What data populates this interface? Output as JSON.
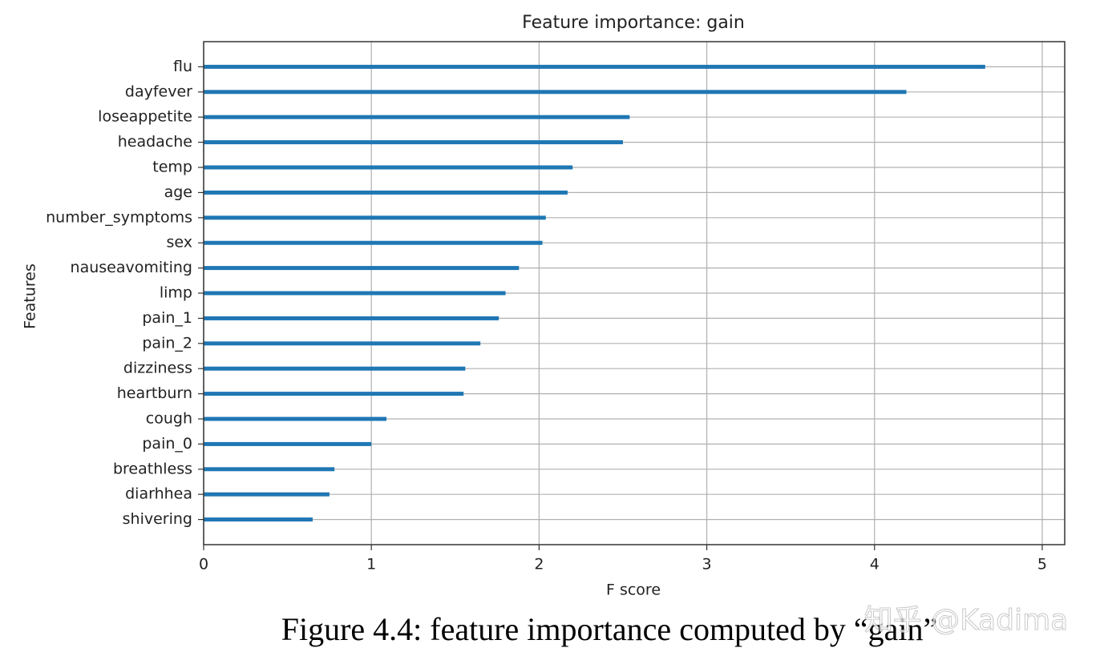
{
  "chart_data": {
    "type": "barh",
    "title": "Feature importance: gain",
    "x_label": "F score",
    "y_label": "Features",
    "categories": [
      "flu",
      "dayfever",
      "loseappetite",
      "headache",
      "temp",
      "age",
      "number_symptoms",
      "sex",
      "nauseavomiting",
      "limp",
      "pain_1",
      "pain_2",
      "dizziness",
      "heartburn",
      "cough",
      "pain_0",
      "breathless",
      "diarhhea",
      "shivering"
    ],
    "values": [
      4.66,
      4.19,
      2.54,
      2.5,
      2.2,
      2.17,
      2.04,
      2.02,
      1.88,
      1.8,
      1.76,
      1.65,
      1.56,
      1.55,
      1.09,
      1.0,
      0.78,
      0.75,
      0.65
    ],
    "color": "#1f77b4",
    "xlim": [
      0,
      5.134
    ],
    "xticks": [
      0,
      1,
      2,
      3,
      4,
      5
    ],
    "grid": true
  },
  "caption": "Figure 4.4: feature importance computed by “gain”",
  "watermark": "知乎 @Kadima"
}
